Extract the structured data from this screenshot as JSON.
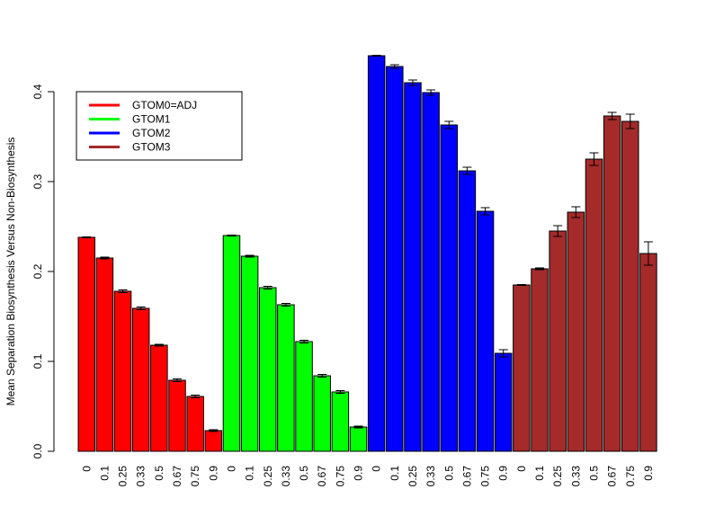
{
  "chart_data": {
    "type": "bar",
    "ylabel": "Mean Separation Biosynthesis Versus Non-Biosynthesis",
    "xlabel": "",
    "ylim": [
      0,
      0.44
    ],
    "yticks": [
      0.0,
      0.1,
      0.2,
      0.3,
      0.4
    ],
    "ytick_labels": [
      "0.0",
      "0.1",
      "0.2",
      "0.3",
      "0.4"
    ],
    "grid": false,
    "legend_position": "top-left",
    "categories": [
      "0",
      "0.1",
      "0.25",
      "0.33",
      "0.5",
      "0.67",
      "0.75",
      "0.9"
    ],
    "series": [
      {
        "name": "GTOM0=ADJ",
        "color": "#ff0000",
        "values": [
          0.238,
          0.215,
          0.178,
          0.159,
          0.118,
          0.079,
          0.061,
          0.023
        ],
        "errors": [
          0.0005,
          0.001,
          0.0015,
          0.0015,
          0.001,
          0.0015,
          0.0015,
          0.001
        ]
      },
      {
        "name": "GTOM1",
        "color": "#00ff00",
        "values": [
          0.24,
          0.217,
          0.182,
          0.163,
          0.122,
          0.084,
          0.066,
          0.027
        ],
        "errors": [
          0.0005,
          0.001,
          0.0015,
          0.0015,
          0.0015,
          0.0015,
          0.0015,
          0.001
        ]
      },
      {
        "name": "GTOM2",
        "color": "#0000ff",
        "values": [
          0.44,
          0.428,
          0.41,
          0.399,
          0.363,
          0.312,
          0.267,
          0.109
        ],
        "errors": [
          0.0005,
          0.002,
          0.003,
          0.003,
          0.004,
          0.004,
          0.004,
          0.004
        ]
      },
      {
        "name": "GTOM3",
        "color": "#a52a2a",
        "values": [
          0.185,
          0.203,
          0.245,
          0.266,
          0.325,
          0.373,
          0.367,
          0.22
        ],
        "errors": [
          0.0005,
          0.001,
          0.006,
          0.006,
          0.007,
          0.004,
          0.008,
          0.013
        ]
      }
    ]
  }
}
